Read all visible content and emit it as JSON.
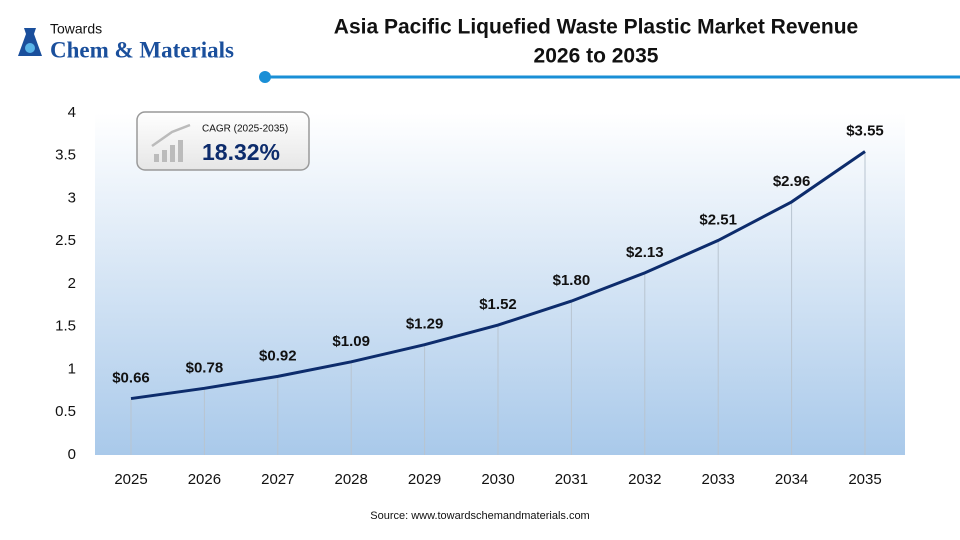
{
  "logo": {
    "line1": "Towards",
    "line2": "Chem & Materials"
  },
  "chart_data": {
    "type": "line",
    "title": [
      "Asia Pacific Liquefied Waste Plastic Market Revenue",
      "2026 to 2035"
    ],
    "categories": [
      "2025",
      "2026",
      "2027",
      "2028",
      "2029",
      "2030",
      "2031",
      "2032",
      "2033",
      "2034",
      "2035"
    ],
    "values": [
      0.66,
      0.78,
      0.92,
      1.09,
      1.29,
      1.52,
      1.8,
      2.13,
      2.51,
      2.96,
      3.55
    ],
    "value_labels": [
      "$0.66",
      "$0.78",
      "$0.92",
      "$1.09",
      "$1.29",
      "$1.52",
      "$1.80",
      "$2.13",
      "$2.51",
      "$2.96",
      "$3.55"
    ],
    "color": "#0d2c6c",
    "ylim": [
      0,
      4
    ],
    "yticks": [
      0,
      0.5,
      1,
      1.5,
      2,
      2.5,
      3,
      3.5,
      4
    ],
    "cagr_label": "CAGR (2025-2035)",
    "cagr_value": "18.32%",
    "source": "Source: www.towardschemandmaterials.com"
  }
}
